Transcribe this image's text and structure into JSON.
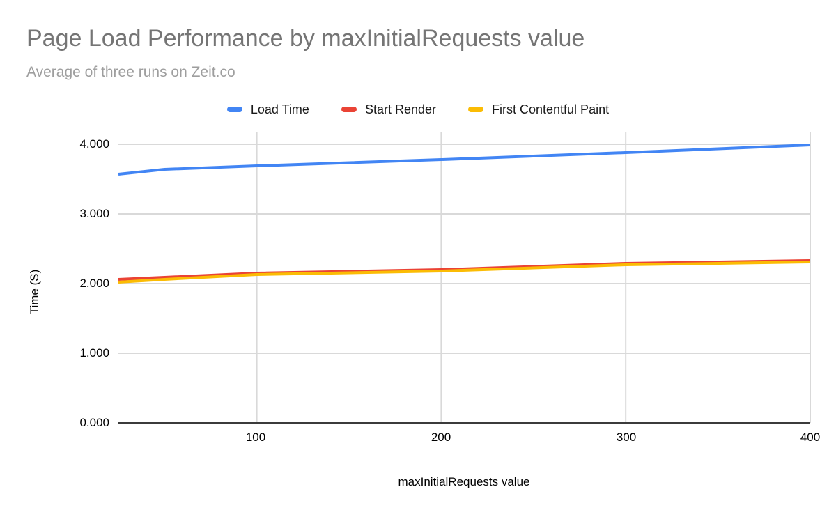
{
  "header": {
    "title": "Page Load Performance by maxInitialRequests value",
    "subtitle": "Average of three runs on Zeit.co"
  },
  "chart_data": {
    "type": "line",
    "title": "Page Load Performance by maxInitialRequests value",
    "subtitle": "Average of three runs on Zeit.co",
    "xlabel": "maxInitialRequests value",
    "ylabel": "Time (S)",
    "x": [
      25,
      50,
      100,
      200,
      300,
      400
    ],
    "series": [
      {
        "name": "Load Time",
        "color": "#4285F4",
        "values": [
          3.57,
          3.64,
          3.69,
          3.78,
          3.88,
          3.99
        ]
      },
      {
        "name": "Start Render",
        "color": "#EA4335",
        "values": [
          2.06,
          2.09,
          2.15,
          2.2,
          2.29,
          2.33
        ]
      },
      {
        "name": "First Contentful Paint",
        "color": "#FBBC04",
        "values": [
          2.02,
          2.06,
          2.13,
          2.18,
          2.27,
          2.31
        ]
      }
    ],
    "xlim": [
      25,
      400
    ],
    "ylim": [
      0,
      4
    ],
    "xtick_values": [
      100,
      200,
      300,
      400
    ],
    "xtick_labels": [
      "100",
      "200",
      "300",
      "400"
    ],
    "ytick_values": [
      4,
      3,
      2,
      1,
      0
    ],
    "ytick_labels": [
      "4.000",
      "3.000",
      "2.000",
      "1.000",
      "0.000"
    ],
    "grid": true,
    "legend_position": "top",
    "colors": {
      "title_text": "#757575",
      "subtitle_text": "#9e9e9e",
      "gridline": "#d9d9d9",
      "axis_line": "#3b3b3b",
      "tick_text": "#000000"
    }
  }
}
